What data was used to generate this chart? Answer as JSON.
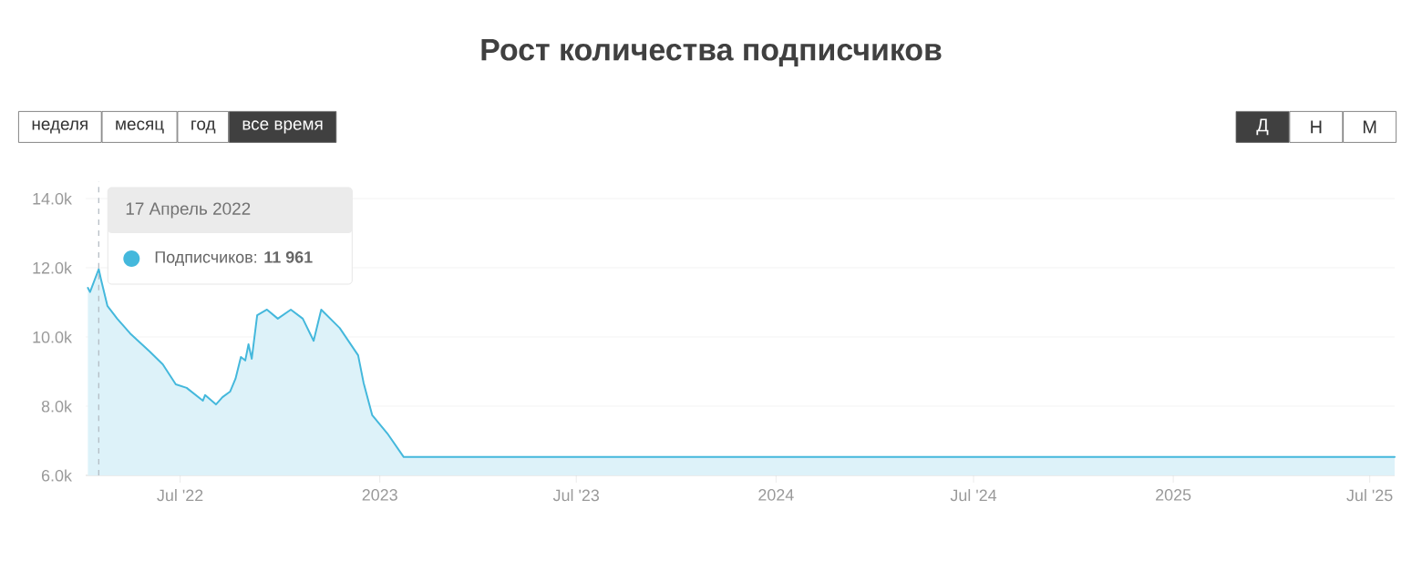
{
  "chart_data": {
    "type": "area",
    "title": "Рост количества подписчиков",
    "x": [
      "2022-04-07",
      "2022-04-09",
      "2022-04-17",
      "2022-04-19",
      "2022-04-25",
      "2022-05-04",
      "2022-05-16",
      "2022-06-03",
      "2022-06-15",
      "2022-06-27",
      "2022-07-07",
      "2022-07-22",
      "2022-07-24",
      "2022-08-03",
      "2022-08-09",
      "2022-08-16",
      "2022-08-21",
      "2022-08-26",
      "2022-08-30",
      "2022-09-02",
      "2022-09-05",
      "2022-09-10",
      "2022-09-19",
      "2022-09-29",
      "2022-10-11",
      "2022-10-22",
      "2022-11-01",
      "2022-11-08",
      "2022-11-25",
      "2022-12-12",
      "2022-12-17",
      "2022-12-25",
      "2023-01-08",
      "2023-01-23",
      "2023-07-01",
      "2024-01-01",
      "2024-07-01",
      "2025-01-01",
      "2025-07-24"
    ],
    "values": [
      11420,
      11300,
      11961,
      11680,
      10900,
      10530,
      10100,
      9580,
      9210,
      8630,
      8530,
      8160,
      8320,
      8050,
      8260,
      8420,
      8790,
      9420,
      9320,
      9790,
      9370,
      10630,
      10790,
      10530,
      10790,
      10530,
      9890,
      10790,
      10260,
      9470,
      8680,
      7740,
      7210,
      6530,
      6530,
      6530,
      6530,
      6530,
      6530
    ],
    "color": "#44b8dc",
    "marker": "none",
    "line_style": "solid",
    "grid": "y",
    "xlim": [
      "2022-04-05",
      "2025-07-24"
    ],
    "xticks": [
      {
        "value": "2022-07-01",
        "label": "Jul '22"
      },
      {
        "value": "2023-01-01",
        "label": "2023"
      },
      {
        "value": "2023-07-01",
        "label": "Jul '23"
      },
      {
        "value": "2024-01-01",
        "label": "2024"
      },
      {
        "value": "2024-07-01",
        "label": "Jul '24"
      },
      {
        "value": "2025-01-01",
        "label": "2025"
      },
      {
        "value": "2025-07-01",
        "label": "Jul '25"
      }
    ],
    "ylim": [
      6000,
      14500
    ],
    "yticks": [
      {
        "value": 6000,
        "label": "6.0k"
      },
      {
        "value": 8000,
        "label": "8.0k"
      },
      {
        "value": 10000,
        "label": "10.0k"
      },
      {
        "value": 12000,
        "label": "12.0k"
      },
      {
        "value": 14000,
        "label": "14.0k"
      }
    ],
    "ref_lines": [
      {
        "axis": "x",
        "value": "2022-04-17",
        "line_style": "dashed",
        "color": "#b0b8c0"
      }
    ],
    "annotations": [
      "неделя",
      "месяц",
      "год",
      "все время",
      "Д",
      "Н",
      "М",
      "17 Апрель 2022",
      "Подписчиков: **11 961**"
    ]
  }
}
